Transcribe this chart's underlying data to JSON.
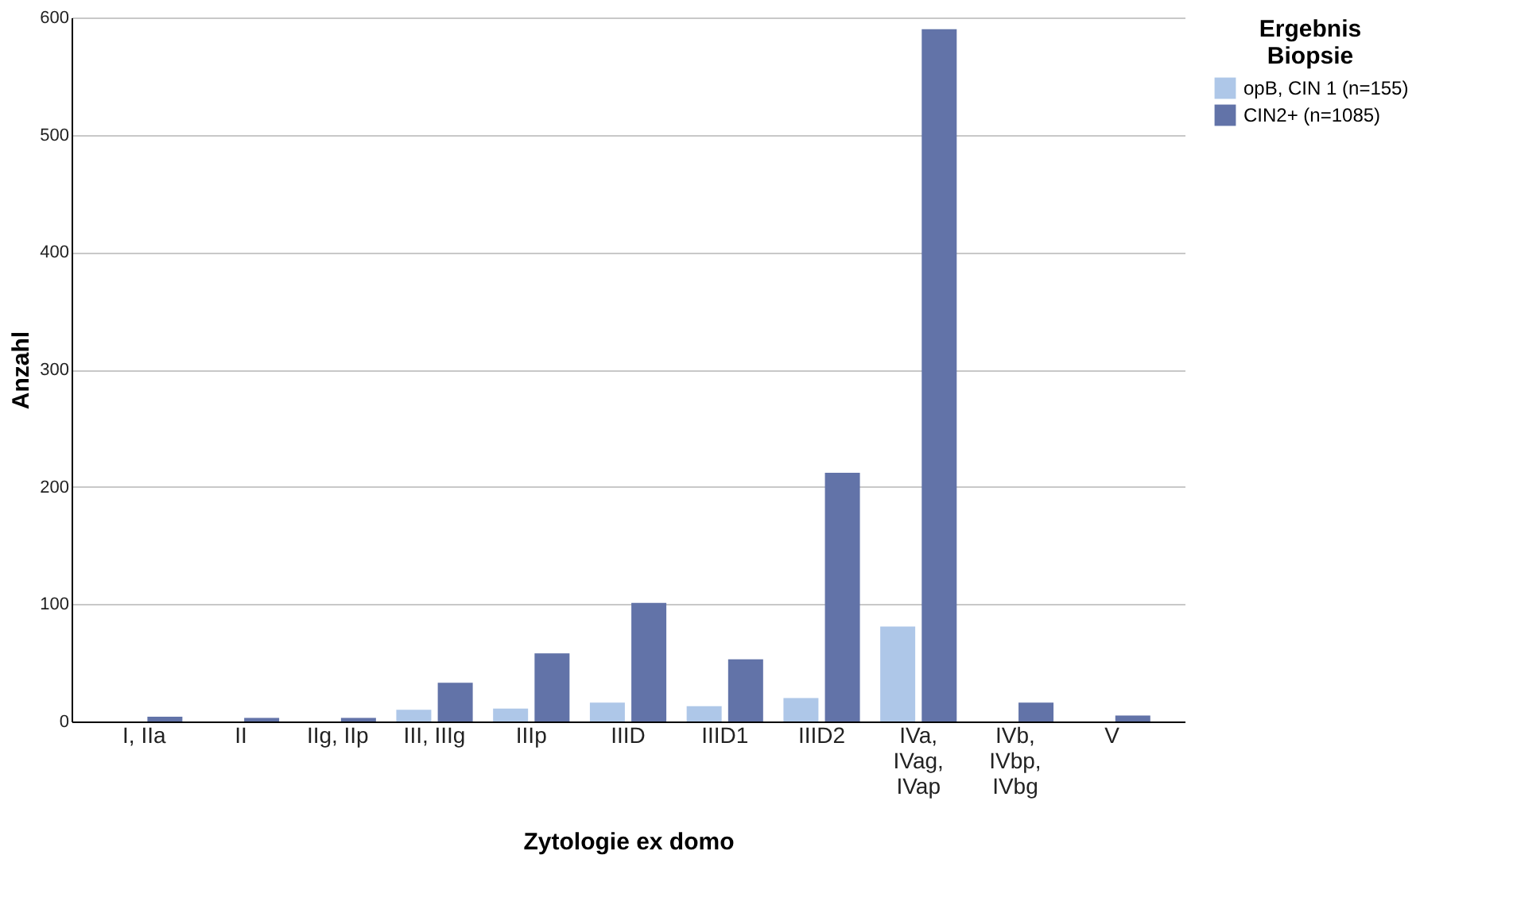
{
  "chart_data": {
    "type": "bar",
    "xlabel": "Zytologie ex domo",
    "ylabel": "Anzahl",
    "legend_title": "Ergebnis Biopsie",
    "categories": [
      "I, IIa",
      "II",
      "IIg, IIp",
      "III, IIIg",
      "IIIp",
      "IIID",
      "IIID1",
      "IIID2",
      "IVa, IVag, IVap",
      "IVb, IVbp, IVbg",
      "V"
    ],
    "series": [
      {
        "name": "opB, CIN 1 (n=155)",
        "color": "#aec7e8",
        "values": [
          null,
          null,
          null,
          10,
          11,
          16,
          13,
          20,
          81,
          null,
          null
        ]
      },
      {
        "name": "CIN2+ (n=1085)",
        "color": "#6273a8",
        "values": [
          4,
          3,
          3,
          33,
          58,
          101,
          53,
          212,
          590,
          16,
          5
        ]
      }
    ],
    "ylim": [
      0,
      600
    ],
    "yticks": [
      0,
      100,
      200,
      300,
      400,
      500,
      600
    ],
    "grid": "y",
    "legend": "top right"
  }
}
